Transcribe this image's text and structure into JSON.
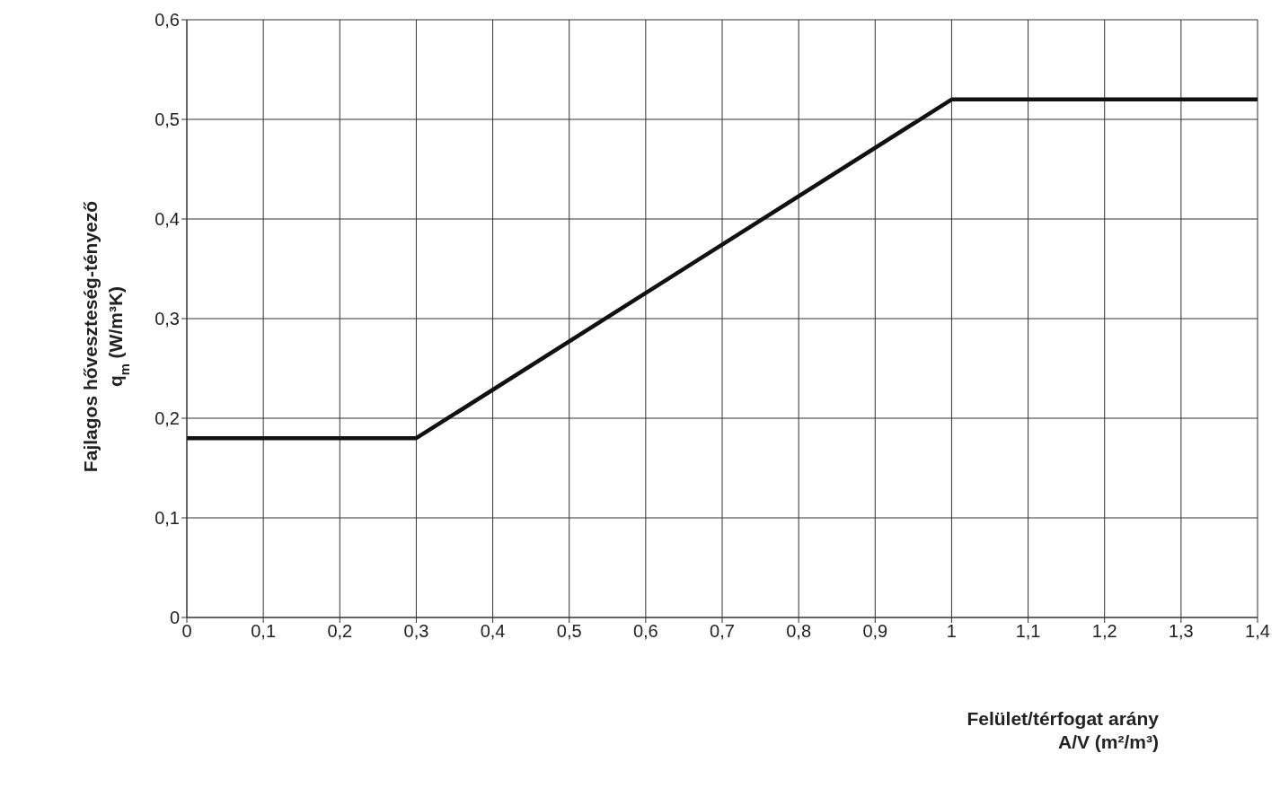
{
  "chart_data": {
    "type": "line",
    "xlabel": "Felület/térfogat arány\nA/V (m²/m³)",
    "ylabel": "Fajlagos hőveszteség-tényező\nq$_{m}$ (W/m³K)",
    "x": [
      0,
      0.3,
      1,
      1.4
    ],
    "series": [
      {
        "color": "#111111",
        "values": [
          0.18,
          0.18,
          0.52,
          0.52
        ]
      }
    ],
    "xlim": [
      0,
      1.4
    ],
    "xticks": [
      {
        "value": 0,
        "label": "0"
      },
      {
        "value": 0.1,
        "label": "0,1"
      },
      {
        "value": 0.2,
        "label": "0,2"
      },
      {
        "value": 0.3,
        "label": "0,3"
      },
      {
        "value": 0.4,
        "label": "0,4"
      },
      {
        "value": 0.5,
        "label": "0,5"
      },
      {
        "value": 0.6,
        "label": "0,6"
      },
      {
        "value": 0.7,
        "label": "0,7"
      },
      {
        "value": 0.8,
        "label": "0,8"
      },
      {
        "value": 0.9,
        "label": "0,9"
      },
      {
        "value": 1,
        "label": "1"
      },
      {
        "value": 1.1,
        "label": "1,1"
      },
      {
        "value": 1.2,
        "label": "1,2"
      },
      {
        "value": 1.3,
        "label": "1,3"
      },
      {
        "value": 1.4,
        "label": "1,4"
      }
    ],
    "ylim": [
      0,
      0.6
    ],
    "yticks": [
      {
        "value": 0,
        "label": "0"
      },
      {
        "value": 0.1,
        "label": "0,1"
      },
      {
        "value": 0.2,
        "label": "0,2"
      },
      {
        "value": 0.3,
        "label": "0,3"
      },
      {
        "value": 0.4,
        "label": "0,4"
      },
      {
        "value": 0.5,
        "label": "0,5"
      },
      {
        "value": 0.6,
        "label": "0,6"
      }
    ],
    "grid": true,
    "marker": "none",
    "line_style": "solid"
  }
}
